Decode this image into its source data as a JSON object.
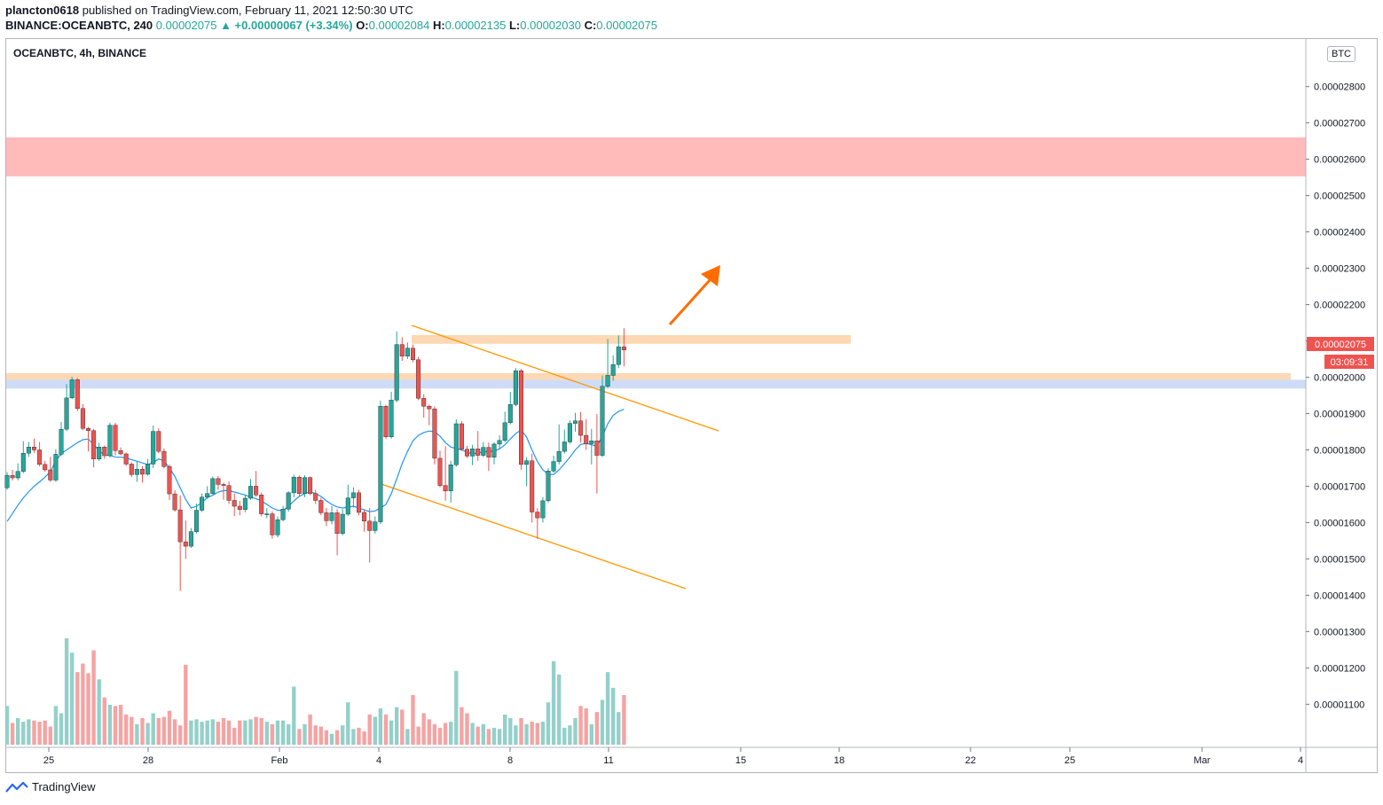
{
  "header": {
    "author": "plancton0618",
    "published": "published on TradingView.com, February 11, 2021 12:50:30 UTC",
    "symbol_full": "BINANCE:OCEANBTC, 240",
    "last": "0.00002075",
    "change": "▲ +0.00000067 (+3.34%)",
    "o_label": "O:",
    "o": "0.00002084",
    "h_label": "H:",
    "h": "0.00002135",
    "l_label": "L:",
    "l": "0.00002030",
    "c_label": "C:",
    "c": "0.00002075"
  },
  "chart_title": "OCEANBTC, 4h, BINANCE",
  "currency": "BTC",
  "price_tag": "0.00002075",
  "countdown_tag": "03:09:31",
  "footer": {
    "brand": "TradingView"
  },
  "colors": {
    "up": "#26a69a",
    "down": "#ef5350",
    "up_vol": "#94d0ca",
    "down_vol": "#f5a3a3",
    "ma": "#2196f3",
    "channel": "#ff9800",
    "arrow": "#ff6d00",
    "resistance_zone": "#ffbaba",
    "orange_zone": "#fcd8b4",
    "blue_zone": "#c6d6f7"
  },
  "chart_data": {
    "type": "candlestick",
    "y_ticks": [
      "0.00002800",
      "0.00002700",
      "0.00002600",
      "0.00002500",
      "0.00002400",
      "0.00002300",
      "0.00002200",
      "0.00002100",
      "0.00002000",
      "0.00001900",
      "0.00001800",
      "0.00001700",
      "0.00001600",
      "0.00001500",
      "0.00001400",
      "0.00001300",
      "0.00001200",
      "0.00001100"
    ],
    "ylim": [
      1.035e-05,
      2.865e-05
    ],
    "x_ticks": [
      "25",
      "28",
      "Feb",
      "4",
      "8",
      "11",
      "15",
      "18",
      "22",
      "25",
      "Mar",
      "4"
    ],
    "zones": [
      {
        "name": "resistance",
        "y1": 2.553e-05,
        "y2": 2.66e-05
      },
      {
        "name": "upper-orange",
        "y1": 2.092e-05,
        "y2": 2.116e-05
      },
      {
        "name": "lower-orange",
        "y1": 1.993e-05,
        "y2": 2.011e-05
      },
      {
        "name": "blue",
        "y1": 1.969e-05,
        "y2": 1.993e-05
      }
    ],
    "candles": [
      [
        1.696e-05,
        1.73e-05,
        1.69e-05,
        1.739e-05
      ],
      [
        1.73e-05,
        1.723e-05,
        1.716e-05,
        1.745e-05
      ],
      [
        1.723e-05,
        1.741e-05,
        1.716e-05,
        1.763e-05
      ],
      [
        1.741e-05,
        1.791e-05,
        1.736e-05,
        1.824e-05
      ],
      [
        1.791e-05,
        1.808e-05,
        1.781e-05,
        1.822e-05
      ],
      [
        1.808e-05,
        1.8e-05,
        1.792e-05,
        1.831e-05
      ],
      [
        1.8e-05,
        1.76e-05,
        1.755e-05,
        1.822e-05
      ],
      [
        1.76e-05,
        1.745e-05,
        1.74e-05,
        1.77e-05
      ],
      [
        1.745e-05,
        1.717e-05,
        1.712e-05,
        1.781e-05
      ],
      [
        1.717e-05,
        1.788e-05,
        1.712e-05,
        1.802e-05
      ],
      [
        1.788e-05,
        1.857e-05,
        1.783e-05,
        1.877e-05
      ],
      [
        1.857e-05,
        1.943e-05,
        1.852e-05,
        1.981e-05
      ],
      [
        1.943e-05,
        1.993e-05,
        1.94e-05,
        2.001e-05
      ],
      [
        1.993e-05,
        1.914e-05,
        1.907e-05,
        1.998e-05
      ],
      [
        1.914e-05,
        1.859e-05,
        1.854e-05,
        1.926e-05
      ],
      [
        1.859e-05,
        1.853e-05,
        1.796e-05,
        1.863e-05
      ],
      [
        1.853e-05,
        1.775e-05,
        1.752e-05,
        1.858e-05
      ],
      [
        1.775e-05,
        1.808e-05,
        1.77e-05,
        1.82e-05
      ],
      [
        1.808e-05,
        1.784e-05,
        1.776e-05,
        1.812e-05
      ],
      [
        1.784e-05,
        1.868e-05,
        1.779e-05,
        1.875e-05
      ],
      [
        1.868e-05,
        1.798e-05,
        1.785e-05,
        1.874e-05
      ],
      [
        1.798e-05,
        1.789e-05,
        1.785e-05,
        1.807e-05
      ],
      [
        1.789e-05,
        1.761e-05,
        1.756e-05,
        1.793e-05
      ],
      [
        1.761e-05,
        1.732e-05,
        1.725e-05,
        1.766e-05
      ],
      [
        1.732e-05,
        1.747e-05,
        1.712e-05,
        1.768e-05
      ],
      [
        1.747e-05,
        1.733e-05,
        1.71e-05,
        1.755e-05
      ],
      [
        1.733e-05,
        1.761e-05,
        1.729e-05,
        1.775e-05
      ],
      [
        1.761e-05,
        1.851e-05,
        1.75e-05,
        1.867e-05
      ],
      [
        1.851e-05,
        1.796e-05,
        1.791e-05,
        1.859e-05
      ],
      [
        1.796e-05,
        1.754e-05,
        1.749e-05,
        1.804e-05
      ],
      [
        1.754e-05,
        1.679e-05,
        1.662e-05,
        1.76e-05
      ],
      [
        1.679e-05,
        1.635e-05,
        1.63e-05,
        1.689e-05
      ],
      [
        1.635e-05,
        1.547e-05,
        1.412e-05,
        1.675e-05
      ],
      [
        1.547e-05,
        1.535e-05,
        1.5e-05,
        1.606e-05
      ],
      [
        1.535e-05,
        1.575e-05,
        1.53e-05,
        1.585e-05
      ],
      [
        1.575e-05,
        1.634e-05,
        1.57e-05,
        1.652e-05
      ],
      [
        1.634e-05,
        1.67e-05,
        1.629e-05,
        1.68e-05
      ],
      [
        1.67e-05,
        1.68e-05,
        1.665e-05,
        1.7e-05
      ],
      [
        1.68e-05,
        1.721e-05,
        1.677e-05,
        1.727e-05
      ],
      [
        1.721e-05,
        1.705e-05,
        1.69e-05,
        1.728e-05
      ],
      [
        1.705e-05,
        1.702e-05,
        1.663e-05,
        1.71e-05
      ],
      [
        1.702e-05,
        1.661e-05,
        1.651e-05,
        1.713e-05
      ],
      [
        1.661e-05,
        1.645e-05,
        1.618e-05,
        1.68e-05
      ],
      [
        1.645e-05,
        1.636e-05,
        1.62e-05,
        1.66e-05
      ],
      [
        1.636e-05,
        1.667e-05,
        1.628e-05,
        1.675e-05
      ],
      [
        1.667e-05,
        1.7e-05,
        1.662e-05,
        1.72e-05
      ],
      [
        1.7e-05,
        1.676e-05,
        1.671e-05,
        1.742e-05
      ],
      [
        1.676e-05,
        1.624e-05,
        1.617e-05,
        1.683e-05
      ],
      [
        1.624e-05,
        1.624e-05,
        1.612e-05,
        1.64e-05
      ],
      [
        1.624e-05,
        1.566e-05,
        1.556e-05,
        1.631e-05
      ],
      [
        1.566e-05,
        1.608e-05,
        1.559e-05,
        1.617e-05
      ],
      [
        1.608e-05,
        1.637e-05,
        1.604e-05,
        1.646e-05
      ],
      [
        1.637e-05,
        1.682e-05,
        1.63e-05,
        1.686e-05
      ],
      [
        1.682e-05,
        1.725e-05,
        1.67e-05,
        1.732e-05
      ],
      [
        1.725e-05,
        1.68e-05,
        1.672e-05,
        1.73e-05
      ],
      [
        1.68e-05,
        1.724e-05,
        1.67e-05,
        1.73e-05
      ],
      [
        1.724e-05,
        1.68e-05,
        1.675e-05,
        1.727e-05
      ],
      [
        1.68e-05,
        1.661e-05,
        1.651e-05,
        1.69e-05
      ],
      [
        1.661e-05,
        1.627e-05,
        1.62e-05,
        1.668e-05
      ],
      [
        1.627e-05,
        1.605e-05,
        1.59e-05,
        1.64e-05
      ],
      [
        1.605e-05,
        1.627e-05,
        1.595e-05,
        1.646e-05
      ],
      [
        1.627e-05,
        1.57e-05,
        1.51e-05,
        1.637e-05
      ],
      [
        1.57e-05,
        1.623e-05,
        1.565e-05,
        1.637e-05
      ],
      [
        1.623e-05,
        1.668e-05,
        1.618e-05,
        1.704e-05
      ],
      [
        1.668e-05,
        1.682e-05,
        1.641e-05,
        1.697e-05
      ],
      [
        1.682e-05,
        1.628e-05,
        1.62e-05,
        1.69e-05
      ],
      [
        1.628e-05,
        1.604e-05,
        1.575e-05,
        1.636e-05
      ],
      [
        1.604e-05,
        1.578e-05,
        1.49e-05,
        1.64e-05
      ],
      [
        1.578e-05,
        1.602e-05,
        1.57e-05,
        1.617e-05
      ],
      [
        1.602e-05,
        1.92e-05,
        1.596e-05,
        1.935e-05
      ],
      [
        1.92e-05,
        1.836e-05,
        1.83e-05,
        1.924e-05
      ],
      [
        1.836e-05,
        1.937e-05,
        1.831e-05,
        1.96e-05
      ],
      [
        1.937e-05,
        2.09e-05,
        1.931e-05,
        2.126e-05
      ],
      [
        2.09e-05,
        2.058e-05,
        2.045e-05,
        2.11e-05
      ],
      [
        2.058e-05,
        2.08e-05,
        2.05e-05,
        2.096e-05
      ],
      [
        2.08e-05,
        2.048e-05,
        2.041e-05,
        2.09e-05
      ],
      [
        2.048e-05,
        1.942e-05,
        1.937e-05,
        2.056e-05
      ],
      [
        1.942e-05,
        1.92e-05,
        1.889e-05,
        1.953e-05
      ],
      [
        1.92e-05,
        1.913e-05,
        1.868e-05,
        1.925e-05
      ],
      [
        1.913e-05,
        1.777e-05,
        1.76e-05,
        1.92e-05
      ],
      [
        1.777e-05,
        1.702e-05,
        1.697e-05,
        1.798e-05
      ],
      [
        1.702e-05,
        1.687e-05,
        1.66e-05,
        1.81e-05
      ],
      [
        1.687e-05,
        1.759e-05,
        1.655e-05,
        1.77e-05
      ],
      [
        1.759e-05,
        1.872e-05,
        1.754e-05,
        1.884e-05
      ],
      [
        1.872e-05,
        1.802e-05,
        1.797e-05,
        1.879e-05
      ],
      [
        1.802e-05,
        1.783e-05,
        1.778e-05,
        1.811e-05
      ],
      [
        1.783e-05,
        1.803e-05,
        1.758e-05,
        1.814e-05
      ],
      [
        1.803e-05,
        1.785e-05,
        1.77e-05,
        1.852e-05
      ],
      [
        1.785e-05,
        1.807e-05,
        1.78e-05,
        1.822e-05
      ],
      [
        1.807e-05,
        1.78e-05,
        1.742e-05,
        1.82e-05
      ],
      [
        1.78e-05,
        1.816e-05,
        1.76e-05,
        1.821e-05
      ],
      [
        1.816e-05,
        1.826e-05,
        1.801e-05,
        1.84e-05
      ],
      [
        1.826e-05,
        1.875e-05,
        1.821e-05,
        1.905e-05
      ],
      [
        1.875e-05,
        1.925e-05,
        1.87e-05,
        1.96e-05
      ],
      [
        1.925e-05,
        2.018e-05,
        1.92e-05,
        2.025e-05
      ],
      [
        2.018e-05,
        1.76e-05,
        1.745e-05,
        2.023e-05
      ],
      [
        1.76e-05,
        1.77e-05,
        1.7e-05,
        1.78e-05
      ],
      [
        1.77e-05,
        1.629e-05,
        1.6e-05,
        1.79e-05
      ],
      [
        1.629e-05,
        1.613e-05,
        1.555e-05,
        1.64e-05
      ],
      [
        1.613e-05,
        1.66e-05,
        1.6e-05,
        1.67e-05
      ],
      [
        1.66e-05,
        1.742e-05,
        1.655e-05,
        1.75e-05
      ],
      [
        1.742e-05,
        1.768e-05,
        1.737e-05,
        1.784e-05
      ],
      [
        1.768e-05,
        1.796e-05,
        1.76e-05,
        1.87e-05
      ],
      [
        1.796e-05,
        1.822e-05,
        1.79e-05,
        1.856e-05
      ],
      [
        1.822e-05,
        1.873e-05,
        1.817e-05,
        1.881e-05
      ],
      [
        1.873e-05,
        1.88e-05,
        1.85e-05,
        1.902e-05
      ],
      [
        1.88e-05,
        1.84e-05,
        1.82e-05,
        1.904e-05
      ],
      [
        1.84e-05,
        1.817e-05,
        1.8e-05,
        1.885e-05
      ],
      [
        1.817e-05,
        1.825e-05,
        1.76e-05,
        1.858e-05
      ],
      [
        1.825e-05,
        1.785e-05,
        1.68e-05,
        1.899e-05
      ],
      [
        1.785e-05,
        1.975e-05,
        1.78e-05,
        2.005e-05
      ],
      [
        1.975e-05,
        2.005e-05,
        1.97e-05,
        2.105e-05
      ],
      [
        2.005e-05,
        2.035e-05,
        1.99e-05,
        2.06e-05
      ],
      [
        2.035e-05,
        2.084e-05,
        2.025e-05,
        2.115e-05
      ],
      [
        2.084e-05,
        2.075e-05,
        2.03e-05,
        2.135e-05
      ]
    ],
    "volumes": [
      160,
      90,
      110,
      95,
      105,
      100,
      95,
      100,
      75,
      160,
      130,
      440,
      380,
      300,
      335,
      295,
      390,
      270,
      195,
      165,
      160,
      165,
      125,
      115,
      85,
      110,
      90,
      130,
      110,
      115,
      140,
      105,
      80,
      330,
      100,
      105,
      95,
      100,
      105,
      95,
      110,
      100,
      70,
      100,
      100,
      105,
      115,
      110,
      95,
      85,
      100,
      100,
      85,
      240,
      65,
      85,
      125,
      80,
      75,
      60,
      45,
      60,
      80,
      175,
      65,
      70,
      55,
      125,
      115,
      150,
      125,
      100,
      155,
      145,
      65,
      205,
      75,
      130,
      105,
      85,
      70,
      90,
      95,
      305,
      155,
      130,
      90,
      75,
      85,
      65,
      70,
      65,
      125,
      110,
      80,
      110,
      85,
      95,
      90,
      95,
      175,
      345,
      290,
      70,
      80,
      110,
      160,
      150,
      85,
      135,
      185,
      300,
      235,
      135,
      205
    ],
    "ma_y": [
      1.603e-05,
      1.625e-05,
      1.648e-05,
      1.668e-05,
      1.685e-05,
      1.7e-05,
      1.712e-05,
      1.725e-05,
      1.74e-05,
      1.77e-05,
      1.79e-05,
      1.8e-05,
      1.81e-05,
      1.82e-05,
      1.828e-05,
      1.83e-05,
      1.815e-05,
      1.798e-05,
      1.786e-05,
      1.785e-05,
      1.78e-05,
      1.78e-05,
      1.778e-05,
      1.773e-05,
      1.769e-05,
      1.764e-05,
      1.76e-05,
      1.765e-05,
      1.775e-05,
      1.77e-05,
      1.75e-05,
      1.727e-05,
      1.695e-05,
      1.664e-05,
      1.64e-05,
      1.645e-05,
      1.655e-05,
      1.669e-05,
      1.675e-05,
      1.684e-05,
      1.688e-05,
      1.688e-05,
      1.684e-05,
      1.68e-05,
      1.676e-05,
      1.67e-05,
      1.666e-05,
      1.66e-05,
      1.65e-05,
      1.64e-05,
      1.634e-05,
      1.633e-05,
      1.645e-05,
      1.66e-05,
      1.672e-05,
      1.68e-05,
      1.685e-05,
      1.68e-05,
      1.672e-05,
      1.66e-05,
      1.65e-05,
      1.643e-05,
      1.64e-05,
      1.642e-05,
      1.645e-05,
      1.64e-05,
      1.635e-05,
      1.63e-05,
      1.632e-05,
      1.64e-05,
      1.65e-05,
      1.68e-05,
      1.72e-05,
      1.762e-05,
      1.796e-05,
      1.825e-05,
      1.84e-05,
      1.848e-05,
      1.852e-05,
      1.85e-05,
      1.838e-05,
      1.82e-05,
      1.808e-05,
      1.803e-05,
      1.8e-05,
      1.794e-05,
      1.789e-05,
      1.792e-05,
      1.795e-05,
      1.795e-05,
      1.797e-05,
      1.803e-05,
      1.814e-05,
      1.83e-05,
      1.845e-05,
      1.855e-05,
      1.835e-05,
      1.8e-05,
      1.768e-05,
      1.745e-05,
      1.733e-05,
      1.732e-05,
      1.745e-05,
      1.762e-05,
      1.78e-05,
      1.8e-05,
      1.815e-05,
      1.818e-05,
      1.814e-05,
      1.81e-05,
      1.838e-05,
      1.872e-05,
      1.895e-05,
      1.906e-05,
      1.912e-05
    ]
  }
}
